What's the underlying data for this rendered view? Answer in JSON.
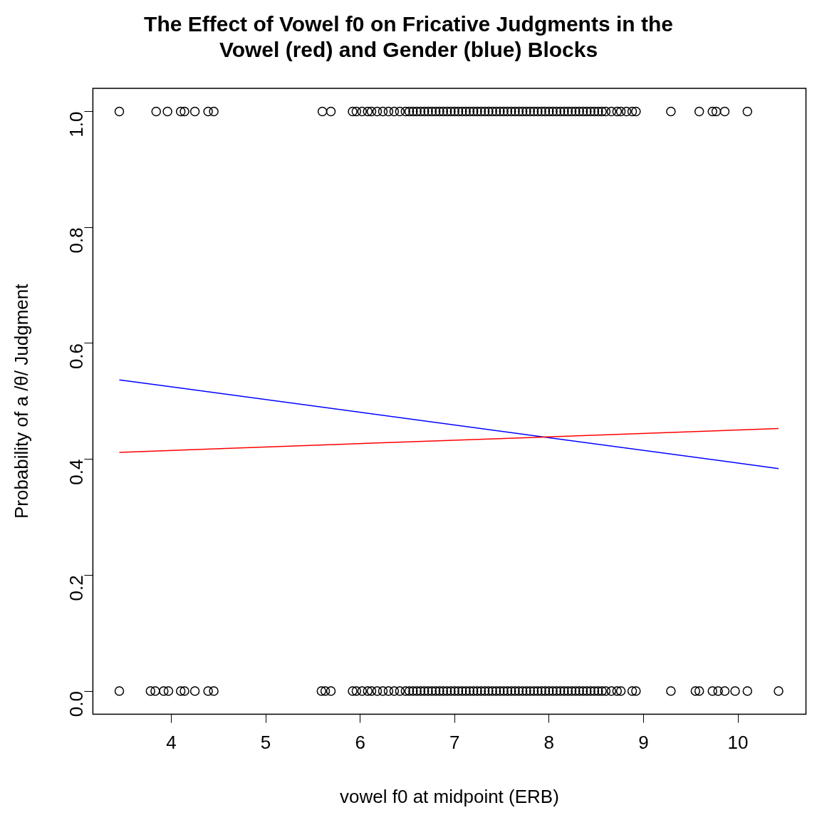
{
  "chart_data": {
    "type": "scatter",
    "title": "The Effect of Vowel f0 on Fricative Judgments in the\nVowel (red) and Gender (blue) Blocks",
    "xlabel": "vowel f0 at midpoint (ERB)",
    "ylabel": "Probability of a /θ/ Judgment",
    "xlim": [
      3.17,
      10.72
    ],
    "xticks": [
      4,
      5,
      6,
      7,
      8,
      9,
      10
    ],
    "ylim": [
      -0.04,
      1.04
    ],
    "yticks": [
      {
        "value": 0,
        "label": "0.0"
      },
      {
        "value": 0.2,
        "label": "0.2"
      },
      {
        "value": 0.4,
        "label": "0.4"
      },
      {
        "value": 0.6,
        "label": "0.6"
      },
      {
        "value": 0.8,
        "label": "0.8"
      },
      {
        "value": 1,
        "label": "1.0"
      }
    ],
    "grid": false,
    "legend": false,
    "series": [
      {
        "type": "scatter",
        "marker": "circle",
        "color": "#000000",
        "x": [
          3.45,
          3.84,
          3.96,
          4.1,
          4.14,
          4.25,
          4.39,
          4.45,
          5.6,
          5.69,
          5.92,
          5.96,
          6.02,
          6.08,
          6.12,
          6.18,
          6.24,
          6.3,
          6.36,
          6.42,
          6.48,
          6.52,
          6.56,
          6.6,
          6.64,
          6.68,
          6.72,
          6.76,
          6.8,
          6.84,
          6.88,
          6.92,
          6.96,
          7.0,
          7.04,
          7.08,
          7.12,
          7.16,
          7.2,
          7.24,
          7.28,
          7.32,
          7.36,
          7.4,
          7.44,
          7.48,
          7.52,
          7.56,
          7.6,
          7.64,
          7.68,
          7.72,
          7.76,
          7.8,
          7.84,
          7.88,
          7.92,
          7.96,
          8.0,
          8.04,
          8.08,
          8.12,
          8.16,
          8.2,
          8.24,
          8.28,
          8.32,
          8.36,
          8.4,
          8.44,
          8.48,
          8.52,
          8.56,
          8.6,
          8.66,
          8.72,
          8.76,
          8.82,
          8.88,
          8.92,
          9.29,
          9.59,
          9.73,
          9.77,
          9.86,
          10.1
        ],
        "values": [
          1,
          1,
          1,
          1,
          1,
          1,
          1,
          1,
          1,
          1,
          1,
          1,
          1,
          1,
          1,
          1,
          1,
          1,
          1,
          1,
          1,
          1,
          1,
          1,
          1,
          1,
          1,
          1,
          1,
          1,
          1,
          1,
          1,
          1,
          1,
          1,
          1,
          1,
          1,
          1,
          1,
          1,
          1,
          1,
          1,
          1,
          1,
          1,
          1,
          1,
          1,
          1,
          1,
          1,
          1,
          1,
          1,
          1,
          1,
          1,
          1,
          1,
          1,
          1,
          1,
          1,
          1,
          1,
          1,
          1,
          1,
          1,
          1,
          1,
          1,
          1,
          1,
          1,
          1,
          1,
          1,
          1,
          1,
          1,
          1,
          1
        ]
      },
      {
        "type": "scatter",
        "marker": "circle",
        "color": "#000000",
        "x": [
          3.45,
          3.78,
          3.83,
          3.92,
          3.97,
          4.1,
          4.14,
          4.25,
          4.39,
          4.45,
          5.59,
          5.63,
          5.69,
          5.92,
          5.96,
          6.02,
          6.08,
          6.12,
          6.18,
          6.24,
          6.3,
          6.36,
          6.42,
          6.48,
          6.52,
          6.56,
          6.6,
          6.64,
          6.68,
          6.72,
          6.76,
          6.8,
          6.84,
          6.88,
          6.92,
          6.96,
          7.0,
          7.04,
          7.08,
          7.12,
          7.16,
          7.2,
          7.24,
          7.28,
          7.32,
          7.36,
          7.4,
          7.44,
          7.48,
          7.52,
          7.56,
          7.6,
          7.64,
          7.68,
          7.72,
          7.76,
          7.8,
          7.84,
          7.88,
          7.92,
          7.96,
          8.0,
          8.04,
          8.08,
          8.12,
          8.16,
          8.2,
          8.24,
          8.28,
          8.32,
          8.36,
          8.4,
          8.44,
          8.48,
          8.52,
          8.56,
          8.6,
          8.66,
          8.72,
          8.76,
          8.88,
          8.92,
          9.29,
          9.55,
          9.59,
          9.73,
          9.79,
          9.86,
          9.97,
          10.1,
          10.43
        ],
        "values": [
          0,
          0,
          0,
          0,
          0,
          0,
          0,
          0,
          0,
          0,
          0,
          0,
          0,
          0,
          0,
          0,
          0,
          0,
          0,
          0,
          0,
          0,
          0,
          0,
          0,
          0,
          0,
          0,
          0,
          0,
          0,
          0,
          0,
          0,
          0,
          0,
          0,
          0,
          0,
          0,
          0,
          0,
          0,
          0,
          0,
          0,
          0,
          0,
          0,
          0,
          0,
          0,
          0,
          0,
          0,
          0,
          0,
          0,
          0,
          0,
          0,
          0,
          0,
          0,
          0,
          0,
          0,
          0,
          0,
          0,
          0,
          0,
          0,
          0,
          0,
          0,
          0,
          0,
          0,
          0,
          0,
          0,
          0,
          0,
          0,
          0,
          0,
          0,
          0,
          0,
          0
        ]
      },
      {
        "type": "line",
        "marker": "none",
        "color": "#ff0000",
        "x": [
          3.45,
          10.43
        ],
        "values": [
          0.412,
          0.453
        ]
      },
      {
        "type": "line",
        "marker": "none",
        "color": "#0000ff",
        "x": [
          3.45,
          10.43
        ],
        "values": [
          0.537,
          0.384
        ]
      }
    ]
  }
}
